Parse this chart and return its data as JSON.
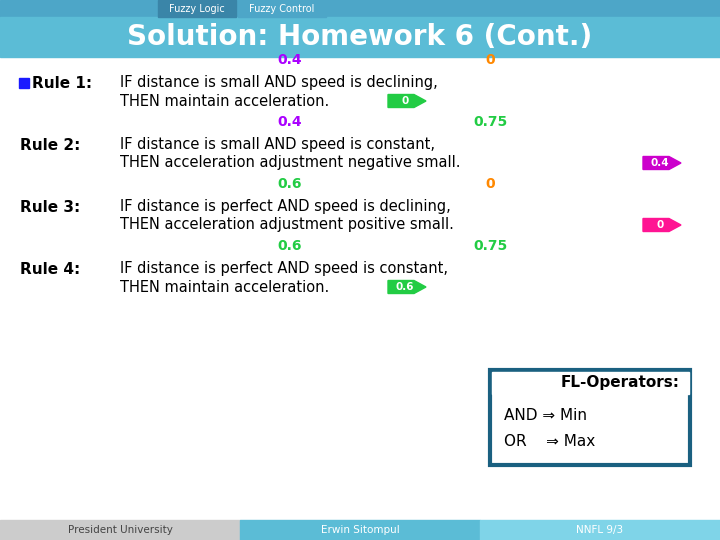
{
  "header_left": "Fuzzy Logic",
  "header_right": "Fuzzy Control",
  "title": "Solution: Homework 6 (Cont.)",
  "header_bar_color": "#4da6c8",
  "header_tab_left_color": "#3a85a8",
  "header_tab_right_color": "#4da6c8",
  "title_bar_color": "#5bbcd6",
  "title_color": "#ffffff",
  "footer_left": "President University",
  "footer_center": "Erwin Sitompul",
  "footer_right": "NNFL 9/3",
  "footer_bg_left": "#cccccc",
  "footer_bg_center": "#5bbcd6",
  "footer_bg_right": "#7fd4e8",
  "rule1_label": "Rule 1:",
  "rule1_line1": "IF distance is small AND speed is declining,",
  "rule1_line2": "THEN maintain acceleration.",
  "rule1_val1": "0.4",
  "rule1_val1_color": "#aa00ff",
  "rule1_val2": "0",
  "rule1_val2_color": "#ff8800",
  "rule1_arrow_text": "0",
  "rule1_arrow_color": "#22cc44",
  "rule1_marker_color": "#1a1aff",
  "rule2_label": "Rule 2:",
  "rule2_line1": "IF distance is small AND speed is constant,",
  "rule2_line2": "THEN acceleration adjustment negative small.",
  "rule2_val1": "0.4",
  "rule2_val1_color": "#aa00ff",
  "rule2_val2": "0.75",
  "rule2_val2_color": "#22cc44",
  "rule2_arrow_text": "0.4",
  "rule2_arrow_color": "#cc00cc",
  "rule3_label": "Rule 3:",
  "rule3_line1": "IF distance is perfect AND speed is declining,",
  "rule3_line2": "THEN acceleration adjustment positive small.",
  "rule3_val1": "0.6",
  "rule3_val1_color": "#22cc44",
  "rule3_val2": "0",
  "rule3_val2_color": "#ff8800",
  "rule3_arrow_text": "0",
  "rule3_arrow_color": "#ff1493",
  "rule4_label": "Rule 4:",
  "rule4_line1": "IF distance is perfect AND speed is constant,",
  "rule4_line2": "THEN maintain acceleration.",
  "rule4_val1": "0.6",
  "rule4_val1_color": "#22cc44",
  "rule4_val2": "0.75",
  "rule4_val2_color": "#22cc44",
  "rule4_arrow_text": "0.6",
  "rule4_arrow_color": "#22cc44",
  "fl_box_title": "FL-Operators:",
  "fl_line1": "AND ⇒ Min",
  "fl_line2": "OR    ⇒ Max",
  "fl_border_color": "#1a6080",
  "bg_color": "#ffffff"
}
